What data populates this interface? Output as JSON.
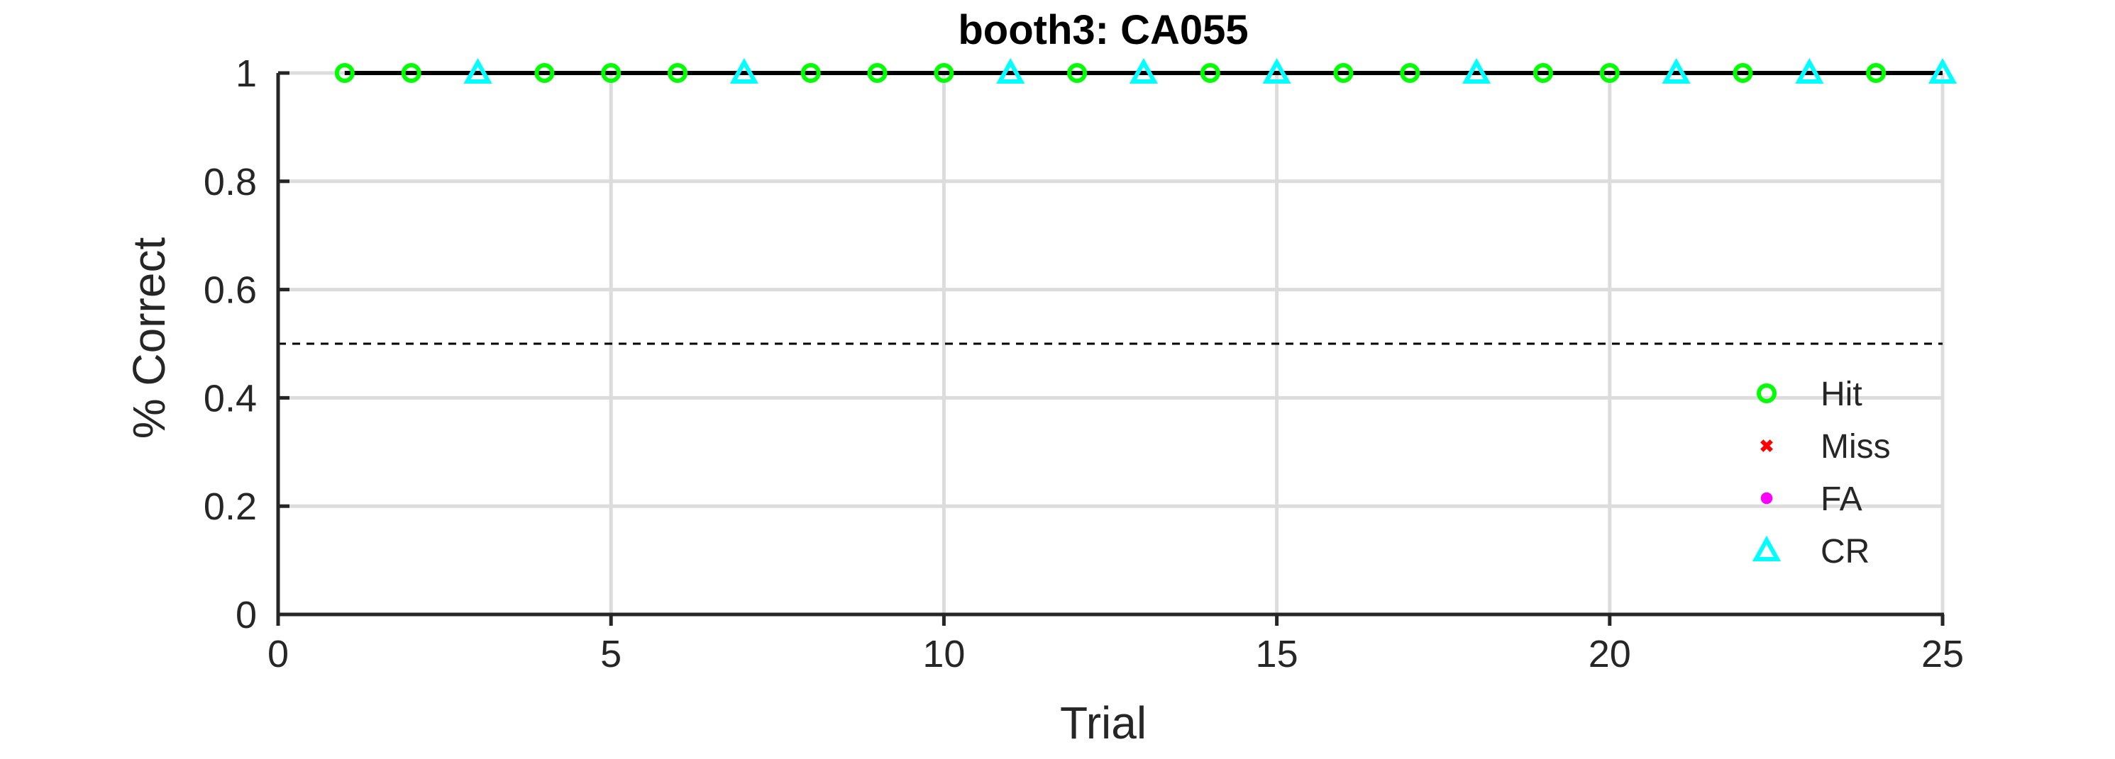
{
  "chart_data": {
    "type": "scatter",
    "title": "booth3: CA055",
    "xlabel": "Trial",
    "ylabel": "% Correct",
    "xlim": [
      0,
      25
    ],
    "ylim": [
      0,
      1
    ],
    "xticks": [
      0,
      5,
      10,
      15,
      20,
      25
    ],
    "yticks": [
      0,
      0.2,
      0.4,
      0.6,
      0.8,
      1
    ],
    "xtick_labels": [
      "0",
      "5",
      "10",
      "15",
      "20",
      "25"
    ],
    "ytick_labels": [
      "0",
      "0.2",
      "0.4",
      "0.6",
      "0.8",
      "1"
    ],
    "grid": true,
    "chance_line": {
      "y": 0.5,
      "style": "dashed",
      "color": "#000000"
    },
    "performance_line": {
      "x": [
        1,
        25
      ],
      "y": [
        1,
        1
      ],
      "color": "#000000"
    },
    "legend_position": "lower-right",
    "series": [
      {
        "name": "Hit",
        "marker": "circle-open",
        "color": "#00ff00",
        "x": [
          1,
          2,
          4,
          5,
          6,
          8,
          9,
          10,
          12,
          14,
          16,
          17,
          19,
          20,
          22,
          24
        ],
        "y": [
          1,
          1,
          1,
          1,
          1,
          1,
          1,
          1,
          1,
          1,
          1,
          1,
          1,
          1,
          1,
          1
        ]
      },
      {
        "name": "Miss",
        "marker": "x",
        "color": "#ff0000",
        "x": [],
        "y": []
      },
      {
        "name": "FA",
        "marker": "dot",
        "color": "#ff00ff",
        "x": [],
        "y": []
      },
      {
        "name": "CR",
        "marker": "triangle-open",
        "color": "#00ffff",
        "x": [
          3,
          7,
          11,
          13,
          15,
          18,
          21,
          23,
          25
        ],
        "y": [
          1,
          1,
          1,
          1,
          1,
          1,
          1,
          1,
          1
        ]
      }
    ]
  }
}
